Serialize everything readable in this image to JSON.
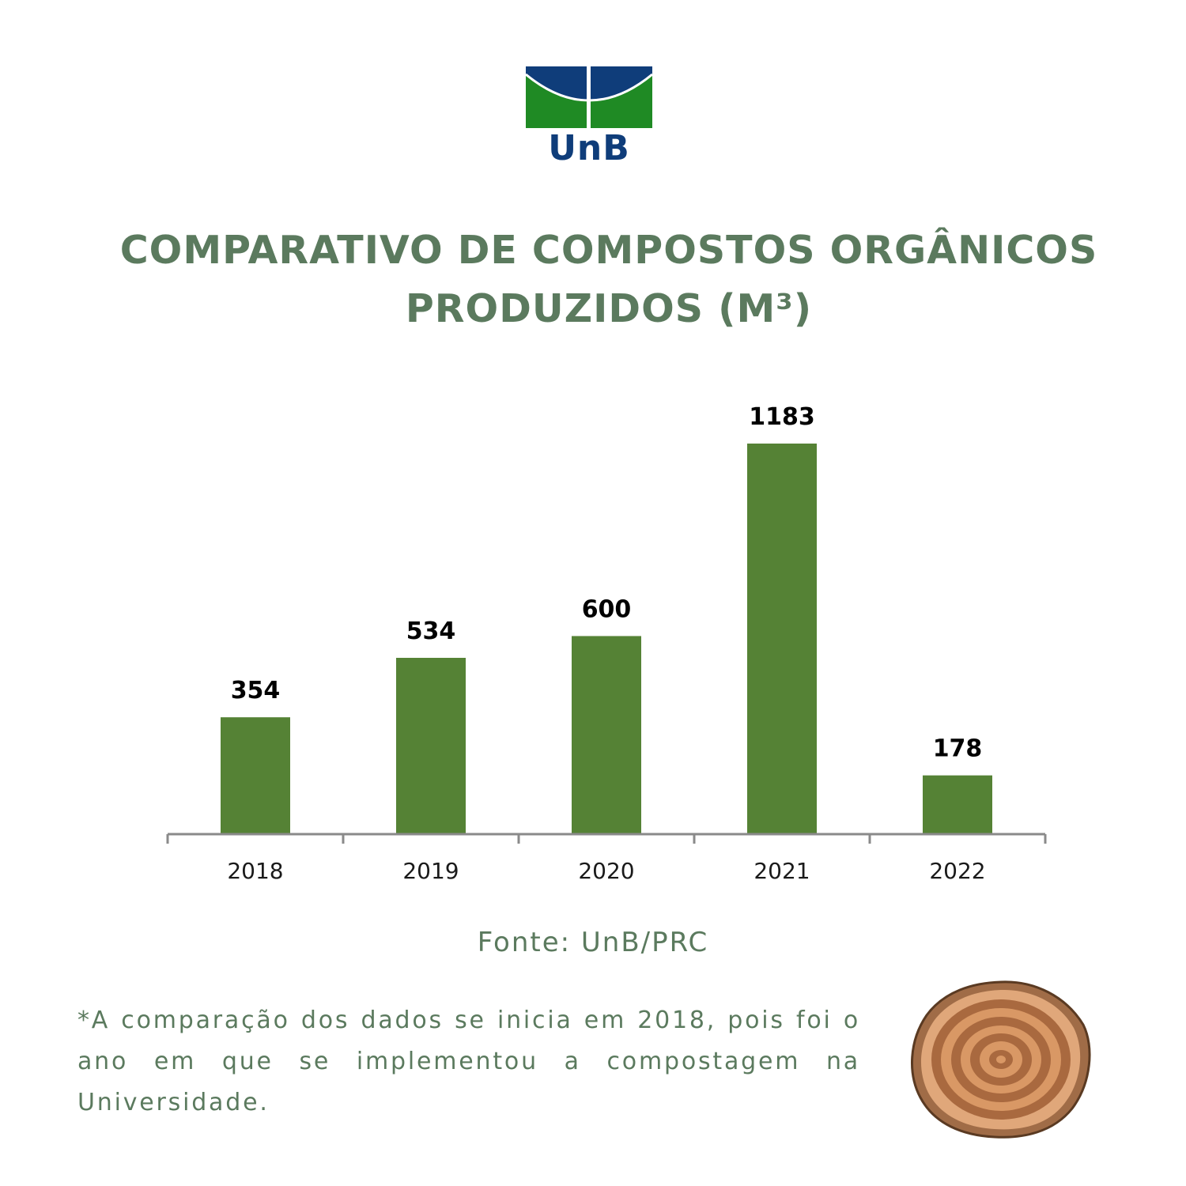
{
  "logo": {
    "text": "UnB"
  },
  "title": {
    "line1": "COMPARATIVO DE COMPOSTOS ORGÂNICOS",
    "line2": "PRODUZIDOS  (M³)"
  },
  "colors": {
    "bar": "#558235",
    "title_text": "#5b7a5e",
    "logo_blue": "#0f3d7a",
    "logo_green": "#1f8a24"
  },
  "chart_data": {
    "type": "bar",
    "categories": [
      "2018",
      "2019",
      "2020",
      "2021",
      "2022"
    ],
    "values": [
      354,
      534,
      600,
      1183,
      178
    ],
    "data_labels": [
      "354",
      "534",
      "600",
      "1183",
      "178"
    ],
    "ylim": [
      0,
      1183
    ],
    "grid": false,
    "y_axis_visible": false
  },
  "source": "Fonte: UnB/PRC",
  "note": "*A comparação dos dados se inicia em 2018, pois foi o ano em que se implementou a compostagem na Universidade.",
  "decoration": {
    "icon": "tree-stump-icon"
  }
}
